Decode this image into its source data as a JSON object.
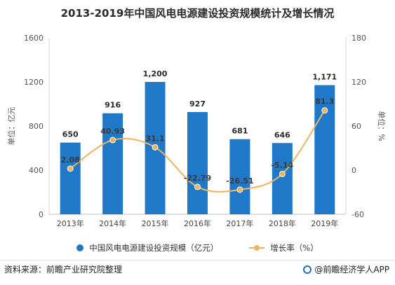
{
  "title": "2013-2019年中国风电电源建设投资规模统计及增长情况",
  "left_axis_label": "单位：亿元",
  "right_axis_label": "单位：%",
  "legend": {
    "bar": "中国风电电源建设投资规模（亿元）",
    "line": "增长率（%）"
  },
  "footer": {
    "source": "资料来源：前瞻产业研究院整理",
    "brand": "@前瞻经济学人APP"
  },
  "colors": {
    "bar": "#1f78c8",
    "line": "#f0b35e"
  },
  "chart_data": {
    "type": "bar",
    "categories": [
      "2013年",
      "2014年",
      "2015年",
      "2016年",
      "2017年",
      "2018年",
      "2019年"
    ],
    "series": [
      {
        "name": "中国风电电源建设投资规模（亿元）",
        "type": "bar",
        "axis": "left",
        "values": [
          650,
          916,
          1200,
          927,
          681,
          646,
          1171
        ],
        "labels": [
          "650",
          "916",
          "1,200",
          "927",
          "681",
          "646",
          "1,171"
        ]
      },
      {
        "name": "增长率（%）",
        "type": "line",
        "axis": "right",
        "values": [
          2.08,
          40.93,
          31.1,
          -22.79,
          -26.51,
          -5.14,
          81.3
        ],
        "labels": [
          "2.08",
          "40.93",
          "31.1",
          "-22.79",
          "-26.51",
          "-5.14",
          "81.3"
        ]
      }
    ],
    "y_left": {
      "lim": [
        0,
        1600
      ],
      "ticks": [
        0,
        400,
        800,
        1200,
        1600
      ]
    },
    "y_right": {
      "lim": [
        -60,
        180
      ],
      "ticks": [
        -60,
        0,
        60,
        120,
        180
      ]
    },
    "grid": false,
    "legend_position": "bottom"
  }
}
